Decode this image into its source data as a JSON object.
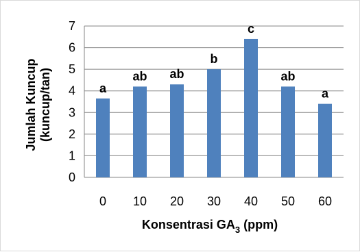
{
  "chart_data": {
    "type": "bar",
    "categories": [
      "0",
      "10",
      "20",
      "30",
      "40",
      "50",
      "60"
    ],
    "values": [
      3.65,
      4.2,
      4.3,
      5.0,
      6.4,
      4.2,
      3.4
    ],
    "annotations": [
      "a",
      "ab",
      "ab",
      "b",
      "c",
      "ab",
      "a"
    ],
    "ylim": [
      0,
      7
    ],
    "yticks": [
      "0",
      "1",
      "2",
      "3",
      "4",
      "5",
      "6",
      "7"
    ],
    "xlabel_parts": {
      "main": "Konsentrasi GA",
      "subscript": "3",
      "suffix": " (ppm)"
    },
    "ylabel_lines": [
      "Jumlah Kuncup",
      "(kuncup/tan)"
    ],
    "grid": true,
    "colors": {
      "bar": "#4f81bd",
      "grid": "#868686",
      "axis": "#868686"
    }
  }
}
